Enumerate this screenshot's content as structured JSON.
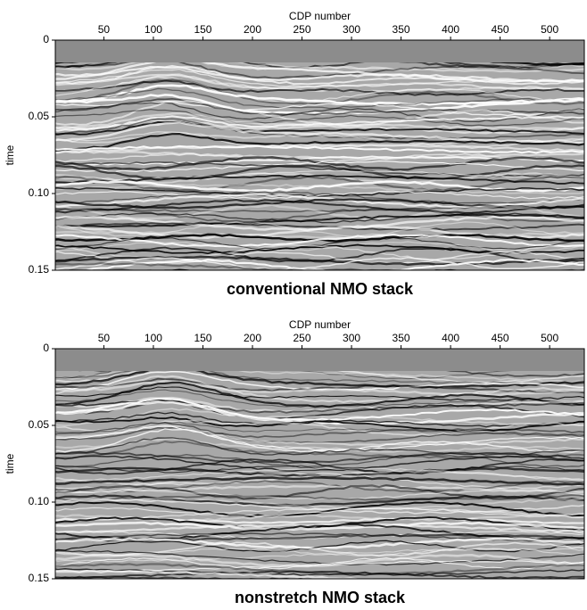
{
  "chart_data": [
    {
      "type": "image",
      "title": "conventional NMO stack",
      "xlabel": "CDP number",
      "ylabel": "time",
      "xlim": [
        1,
        535
      ],
      "xticks": [
        50,
        100,
        150,
        200,
        250,
        300,
        350,
        400,
        450,
        500
      ],
      "ylim": [
        0,
        0.15
      ],
      "yticks": [
        0,
        0.05,
        {
          "value": 0.1,
          "label": "0.10"
        },
        0.15
      ]
    },
    {
      "type": "image",
      "title": "nonstretch NMO stack",
      "xlabel": "CDP number",
      "ylabel": "time",
      "xlim": [
        1,
        535
      ],
      "xticks": [
        50,
        100,
        150,
        200,
        250,
        300,
        350,
        400,
        450,
        500
      ],
      "ylim": [
        0,
        0.15
      ],
      "yticks": [
        0,
        0.05,
        {
          "value": 0.1,
          "label": "0.10"
        },
        0.15
      ]
    }
  ]
}
